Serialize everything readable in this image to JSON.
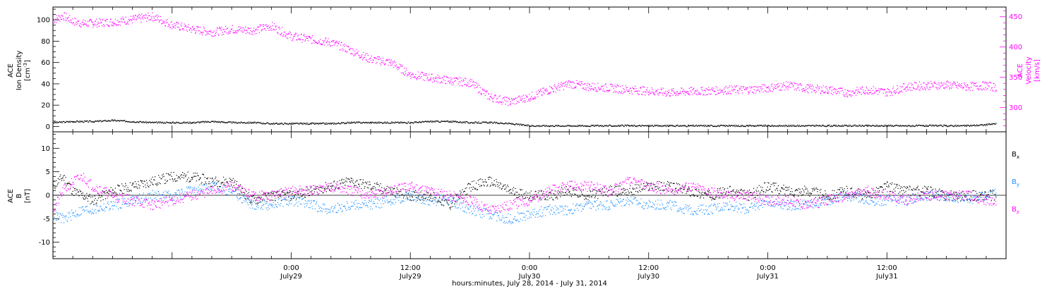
{
  "chart_data": [
    {
      "type": "scatter",
      "title": "",
      "xlabel": "hours:minutes, July 28, 2014 - July 31, 2014",
      "ylabel_left": [
        "ACE",
        "Ion Density",
        "[cm",
        "-3",
        "]"
      ],
      "ylabel_right": [
        "ACE",
        "Velocity",
        "[km/s]"
      ],
      "xlim_hours": [
        0,
        96
      ],
      "ylim_left": [
        -5,
        112
      ],
      "ylim_right": [
        260,
        466
      ],
      "yticks_left": [
        0,
        20,
        40,
        60,
        80,
        100
      ],
      "yticks_right": [
        300,
        350,
        400,
        450
      ],
      "colors": {
        "density": "#000000",
        "velocity": "#ff00ff"
      },
      "series": [
        {
          "axis": "left",
          "x": [
            0,
            2,
            4,
            6,
            8,
            10,
            12,
            14,
            16,
            18,
            20,
            22,
            24,
            26,
            28,
            30,
            32,
            34,
            36,
            38,
            40,
            42,
            44,
            46,
            48,
            50,
            52,
            54,
            56,
            58,
            60,
            62,
            64,
            66,
            68,
            70,
            72,
            74,
            76,
            78,
            80,
            82,
            84,
            86,
            88,
            90,
            92,
            94,
            95
          ],
          "values": [
            4,
            5,
            5,
            6,
            5,
            4,
            4,
            4,
            5,
            4,
            4,
            3,
            3,
            3,
            3,
            4,
            4,
            4,
            4,
            5,
            5,
            4,
            4,
            3,
            1,
            1,
            1,
            1,
            1,
            1,
            1,
            1,
            1,
            1,
            1,
            1,
            1,
            1,
            1,
            1,
            1,
            1,
            1,
            1,
            1,
            1,
            1,
            2,
            3
          ]
        },
        {
          "axis": "right",
          "x": [
            0,
            1,
            2,
            3,
            4,
            6,
            8,
            10,
            12,
            14,
            16,
            18,
            20,
            22,
            24,
            26,
            28,
            30,
            32,
            34,
            36,
            38,
            40,
            42,
            44,
            46,
            48,
            50,
            52,
            54,
            56,
            58,
            60,
            62,
            64,
            66,
            68,
            70,
            72,
            74,
            76,
            78,
            80,
            82,
            84,
            86,
            88,
            90,
            92,
            94,
            96
          ],
          "values": [
            445,
            452,
            443,
            439,
            440,
            442,
            446,
            451,
            437,
            430,
            425,
            430,
            428,
            435,
            418,
            413,
            408,
            395,
            380,
            375,
            355,
            350,
            345,
            342,
            318,
            310,
            318,
            330,
            340,
            335,
            333,
            330,
            328,
            325,
            327,
            328,
            330,
            330,
            333,
            337,
            332,
            330,
            325,
            330,
            326,
            335,
            337,
            338,
            335,
            337,
            330
          ]
        }
      ]
    },
    {
      "type": "scatter",
      "title": "",
      "xlabel": "hours:minutes, July 28, 2014 - July 31, 2014",
      "ylabel": [
        "ACE",
        "B",
        "[nT]"
      ],
      "xlim_hours": [
        0,
        96
      ],
      "ylim": [
        -13.5,
        13.5
      ],
      "yticks": [
        -10,
        -5,
        0,
        5,
        10
      ],
      "colors": {
        "Bx": "#000000",
        "By": "#1e90ff",
        "Bz": "#ff00ff"
      },
      "legend": [
        "B",
        "x",
        "B",
        "y",
        "B",
        "z"
      ],
      "series": [
        {
          "name_base": "B",
          "name_sub": "x",
          "x": [
            0,
            1,
            2,
            3,
            4,
            6,
            8,
            10,
            12,
            14,
            16,
            18,
            20,
            22,
            24,
            26,
            28,
            30,
            32,
            34,
            36,
            38,
            40,
            42,
            44,
            46,
            48,
            50,
            52,
            54,
            56,
            58,
            60,
            62,
            64,
            66,
            68,
            70,
            72,
            74,
            76,
            78,
            80,
            82,
            84,
            86,
            88,
            90,
            92,
            94,
            96
          ],
          "values": [
            2,
            4,
            1,
            0,
            -1,
            1,
            2,
            3,
            4,
            4,
            3,
            3,
            -1,
            0,
            0,
            1,
            2,
            3,
            2,
            1,
            0,
            0,
            -2,
            2,
            3,
            1,
            0,
            0,
            1,
            0,
            1,
            1,
            2,
            2,
            1,
            0,
            1,
            0,
            2,
            1,
            1,
            0,
            1,
            0,
            2,
            1,
            1,
            0,
            0,
            0,
            0
          ]
        },
        {
          "name_base": "B",
          "name_sub": "y",
          "x": [
            0,
            1,
            2,
            3,
            4,
            6,
            8,
            10,
            12,
            14,
            16,
            18,
            20,
            22,
            24,
            26,
            28,
            30,
            32,
            34,
            36,
            38,
            40,
            42,
            44,
            46,
            48,
            50,
            52,
            54,
            56,
            58,
            60,
            62,
            64,
            66,
            68,
            70,
            72,
            74,
            76,
            78,
            80,
            82,
            84,
            86,
            88,
            90,
            92,
            94,
            96
          ],
          "values": [
            -4,
            -5,
            -4,
            -3,
            -3,
            -2,
            -1,
            0,
            0,
            1,
            2,
            1,
            -2,
            -2,
            -1,
            -2,
            -3,
            -2,
            -2,
            -1,
            0,
            -1,
            -1,
            -3,
            -4,
            -5,
            -4,
            -3,
            -3,
            -2,
            -2,
            -1,
            -2,
            -2,
            -3,
            -3,
            -2,
            -3,
            -1,
            -2,
            -2,
            -1,
            0,
            -1,
            -1,
            -1,
            0,
            0,
            -1,
            0,
            2
          ]
        },
        {
          "name_base": "B",
          "name_sub": "z",
          "x": [
            0,
            1,
            2,
            3,
            4,
            6,
            8,
            10,
            12,
            14,
            16,
            18,
            20,
            22,
            24,
            26,
            28,
            30,
            32,
            34,
            36,
            38,
            40,
            42,
            44,
            46,
            48,
            50,
            52,
            54,
            56,
            58,
            60,
            62,
            64,
            66,
            68,
            70,
            72,
            74,
            76,
            78,
            80,
            82,
            84,
            86,
            88,
            90,
            92,
            94,
            96
          ],
          "values": [
            -3,
            1,
            3,
            4,
            2,
            0,
            -1,
            -2,
            -1,
            0,
            1,
            2,
            0,
            0,
            1,
            1,
            2,
            1,
            0,
            1,
            2,
            1,
            0,
            -1,
            -3,
            -2,
            -1,
            1,
            2,
            2,
            1,
            3,
            2,
            1,
            2,
            1,
            0,
            0,
            -1,
            -1,
            -2,
            -1,
            0,
            1,
            0,
            -1,
            0,
            0,
            0,
            -1,
            -2
          ]
        }
      ]
    }
  ],
  "x_axis": {
    "tick_labels": [
      {
        "hour": 12,
        "time": "",
        "day": ""
      },
      {
        "hour": 24,
        "time": "0:00",
        "day": "July29"
      },
      {
        "hour": 36,
        "time": "12:00",
        "day": "July29"
      },
      {
        "hour": 48,
        "time": "0:00",
        "day": "July30"
      },
      {
        "hour": 60,
        "time": "12:00",
        "day": "July30"
      },
      {
        "hour": 72,
        "time": "0:00",
        "day": "July31"
      },
      {
        "hour": 84,
        "time": "12:00",
        "day": "July31"
      }
    ]
  }
}
